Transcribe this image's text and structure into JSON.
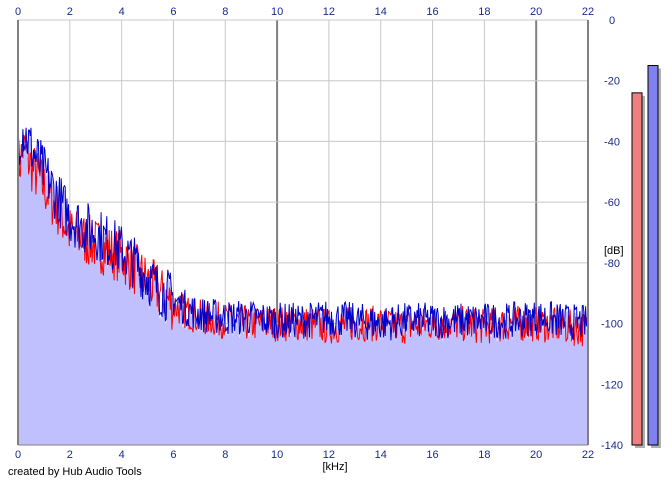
{
  "chart_data": {
    "type": "area",
    "xlabel": "[kHz]",
    "ylabel": "[dB]",
    "xlim": [
      0,
      22
    ],
    "ylim": [
      -140,
      0
    ],
    "x_ticks": [
      0,
      2,
      4,
      6,
      8,
      10,
      12,
      14,
      16,
      18,
      20,
      22
    ],
    "y_ticks": [
      0,
      -20,
      -40,
      -60,
      -80,
      -100,
      -120,
      -140
    ],
    "y_tick_labels": [
      "0",
      "-20",
      "-40",
      "-60",
      "-80",
      "-100",
      "-120",
      "-140"
    ],
    "grid": true,
    "series": [
      {
        "color": "#ff0000",
        "x": [
          0,
          0.2,
          0.5,
          1,
          1.5,
          2,
          2.5,
          3,
          3.5,
          4,
          4.5,
          5,
          5.5,
          6,
          6.5,
          7,
          8,
          9,
          10,
          11,
          12,
          13,
          14,
          15,
          16,
          17,
          18,
          19,
          20,
          21,
          22
        ],
        "y": [
          -50,
          -42,
          -48,
          -55,
          -62,
          -70,
          -72,
          -74,
          -76,
          -78,
          -82,
          -86,
          -90,
          -94,
          -96,
          -98,
          -99,
          -100,
          -100,
          -100,
          -101,
          -100,
          -100,
          -101,
          -100,
          -100,
          -101,
          -100,
          -100,
          -101,
          -102
        ]
      },
      {
        "color": "#0000cc",
        "x": [
          0,
          0.2,
          0.5,
          1,
          1.5,
          2,
          2.5,
          3,
          3.5,
          4,
          4.5,
          5,
          5.5,
          6,
          6.5,
          7,
          8,
          9,
          10,
          11,
          12,
          13,
          14,
          15,
          16,
          17,
          18,
          19,
          20,
          21,
          22
        ],
        "y": [
          -40,
          -36,
          -42,
          -50,
          -58,
          -65,
          -68,
          -70,
          -73,
          -76,
          -80,
          -85,
          -89,
          -92,
          -95,
          -97,
          -98,
          -98,
          -99,
          -99,
          -98,
          -99,
          -100,
          -99,
          -99,
          -99,
          -99,
          -99,
          -98,
          -99,
          -100
        ]
      }
    ],
    "level_meters": [
      {
        "color": "#f08080",
        "value_db": -24
      },
      {
        "color": "#8080f0",
        "value_db": -15
      }
    ]
  },
  "footer": {
    "credit": "created by Hub Audio Tools"
  }
}
